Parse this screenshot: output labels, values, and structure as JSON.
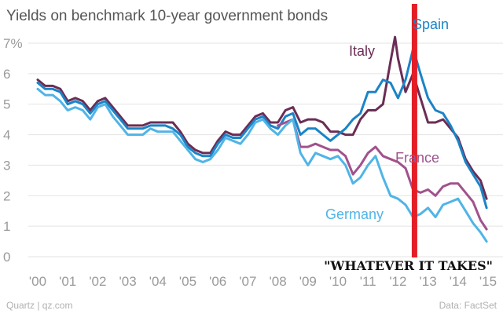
{
  "chart_data": {
    "type": "line",
    "title": "Yields on benchmark 10-year government bonds",
    "xlabel": "",
    "ylabel": "",
    "x_range": [
      2000,
      2015
    ],
    "ylim": [
      0,
      7
    ],
    "y_ticks": [
      0,
      1,
      2,
      3,
      4,
      5,
      6,
      7
    ],
    "y_tick_labels": [
      "0",
      "1",
      "2",
      "3",
      "4",
      "5",
      "6",
      "7%"
    ],
    "x_ticks": [
      2000,
      2001,
      2002,
      2003,
      2004,
      2005,
      2006,
      2007,
      2008,
      2009,
      2010,
      2011,
      2012,
      2013,
      2014,
      2015
    ],
    "x_tick_labels": [
      "'00",
      "'01",
      "'02",
      "'03",
      "'04",
      "'05",
      "'06",
      "'07",
      "'08",
      "'09",
      "'10",
      "'11",
      "'12",
      "'13",
      "'14",
      "'15"
    ],
    "grid": true,
    "legend": "direct labels",
    "series": [
      {
        "name": "Italy",
        "color": "#6b2d55",
        "x": [
          2000.0,
          2000.25,
          2000.5,
          2000.75,
          2001.0,
          2001.25,
          2001.5,
          2001.75,
          2002.0,
          2002.25,
          2002.5,
          2002.75,
          2003.0,
          2003.25,
          2003.5,
          2003.75,
          2004.0,
          2004.25,
          2004.5,
          2004.75,
          2005.0,
          2005.25,
          2005.5,
          2005.75,
          2006.0,
          2006.25,
          2006.5,
          2006.75,
          2007.0,
          2007.25,
          2007.5,
          2007.75,
          2008.0,
          2008.25,
          2008.5,
          2008.75,
          2009.0,
          2009.25,
          2009.5,
          2009.75,
          2010.0,
          2010.25,
          2010.5,
          2010.75,
          2011.0,
          2011.25,
          2011.5,
          2011.75,
          2011.9,
          2012.0,
          2012.25,
          2012.5,
          2012.75,
          2013.0,
          2013.25,
          2013.5,
          2013.75,
          2014.0,
          2014.25,
          2014.5,
          2014.75,
          2014.95
        ],
        "values": [
          5.8,
          5.6,
          5.6,
          5.5,
          5.1,
          5.2,
          5.1,
          4.8,
          5.1,
          5.2,
          4.9,
          4.6,
          4.3,
          4.3,
          4.3,
          4.4,
          4.4,
          4.4,
          4.4,
          4.1,
          3.7,
          3.5,
          3.4,
          3.4,
          3.8,
          4.1,
          4.0,
          4.0,
          4.3,
          4.6,
          4.7,
          4.4,
          4.4,
          4.8,
          4.9,
          4.4,
          4.5,
          4.5,
          4.4,
          4.1,
          4.1,
          4.0,
          4.0,
          4.5,
          4.8,
          4.8,
          5.0,
          6.4,
          7.2,
          6.5,
          5.4,
          6.0,
          5.2,
          4.4,
          4.4,
          4.5,
          4.2,
          3.9,
          3.2,
          2.8,
          2.5,
          1.9
        ]
      },
      {
        "name": "Spain",
        "color": "#1a84c7",
        "x": [
          2000.0,
          2000.25,
          2000.5,
          2000.75,
          2001.0,
          2001.25,
          2001.5,
          2001.75,
          2002.0,
          2002.25,
          2002.5,
          2002.75,
          2003.0,
          2003.25,
          2003.5,
          2003.75,
          2004.0,
          2004.25,
          2004.5,
          2004.75,
          2005.0,
          2005.25,
          2005.5,
          2005.75,
          2006.0,
          2006.25,
          2006.5,
          2006.75,
          2007.0,
          2007.25,
          2007.5,
          2007.75,
          2008.0,
          2008.25,
          2008.5,
          2008.75,
          2009.0,
          2009.25,
          2009.5,
          2009.75,
          2010.0,
          2010.25,
          2010.5,
          2010.75,
          2011.0,
          2011.25,
          2011.5,
          2011.75,
          2012.0,
          2012.25,
          2012.5,
          2012.6,
          2012.75,
          2013.0,
          2013.25,
          2013.5,
          2013.75,
          2014.0,
          2014.25,
          2014.5,
          2014.75,
          2014.95
        ],
        "values": [
          5.7,
          5.5,
          5.5,
          5.4,
          5.0,
          5.1,
          5.0,
          4.7,
          5.0,
          5.1,
          4.8,
          4.5,
          4.2,
          4.2,
          4.2,
          4.3,
          4.3,
          4.3,
          4.2,
          4.0,
          3.6,
          3.4,
          3.3,
          3.3,
          3.7,
          4.0,
          3.9,
          3.9,
          4.2,
          4.5,
          4.6,
          4.3,
          4.2,
          4.6,
          4.7,
          4.0,
          4.2,
          4.2,
          4.0,
          3.8,
          4.0,
          4.2,
          4.5,
          4.7,
          5.4,
          5.4,
          5.8,
          5.7,
          5.2,
          5.8,
          6.8,
          6.5,
          6.0,
          5.2,
          4.8,
          4.7,
          4.3,
          3.8,
          3.1,
          2.7,
          2.3,
          1.6
        ]
      },
      {
        "name": "France",
        "color": "#a0528c",
        "x": [
          2008.0,
          2008.25,
          2008.5,
          2008.75,
          2009.0,
          2009.25,
          2009.5,
          2009.75,
          2010.0,
          2010.25,
          2010.5,
          2010.75,
          2011.0,
          2011.25,
          2011.5,
          2011.75,
          2012.0,
          2012.25,
          2012.5,
          2012.75,
          2013.0,
          2013.25,
          2013.5,
          2013.75,
          2014.0,
          2014.25,
          2014.5,
          2014.75,
          2014.95
        ],
        "values": [
          4.3,
          4.4,
          4.5,
          3.6,
          3.6,
          3.7,
          3.6,
          3.5,
          3.5,
          3.3,
          2.7,
          3.0,
          3.4,
          3.6,
          3.3,
          3.2,
          3.1,
          2.9,
          2.2,
          2.1,
          2.2,
          2.0,
          2.3,
          2.4,
          2.4,
          2.1,
          1.8,
          1.2,
          0.9
        ]
      },
      {
        "name": "Germany",
        "color": "#50b4e6",
        "x": [
          2000.0,
          2000.25,
          2000.5,
          2000.75,
          2001.0,
          2001.25,
          2001.5,
          2001.75,
          2002.0,
          2002.25,
          2002.5,
          2002.75,
          2003.0,
          2003.25,
          2003.5,
          2003.75,
          2004.0,
          2004.25,
          2004.5,
          2004.75,
          2005.0,
          2005.25,
          2005.5,
          2005.75,
          2006.0,
          2006.25,
          2006.5,
          2006.75,
          2007.0,
          2007.25,
          2007.5,
          2007.75,
          2008.0,
          2008.25,
          2008.5,
          2008.75,
          2009.0,
          2009.25,
          2009.5,
          2009.75,
          2010.0,
          2010.25,
          2010.5,
          2010.75,
          2011.0,
          2011.25,
          2011.5,
          2011.75,
          2012.0,
          2012.25,
          2012.5,
          2012.75,
          2013.0,
          2013.25,
          2013.5,
          2013.75,
          2014.0,
          2014.25,
          2014.5,
          2014.75,
          2014.95
        ],
        "values": [
          5.5,
          5.3,
          5.3,
          5.1,
          4.8,
          4.9,
          4.8,
          4.5,
          4.9,
          5.0,
          4.6,
          4.3,
          4.0,
          4.0,
          4.0,
          4.2,
          4.1,
          4.1,
          4.1,
          3.8,
          3.5,
          3.2,
          3.1,
          3.2,
          3.5,
          3.9,
          3.8,
          3.7,
          4.0,
          4.4,
          4.5,
          4.2,
          4.0,
          4.3,
          4.5,
          3.4,
          3.0,
          3.4,
          3.3,
          3.2,
          3.3,
          3.0,
          2.4,
          2.6,
          3.0,
          3.3,
          2.6,
          2.0,
          1.9,
          1.7,
          1.3,
          1.4,
          1.6,
          1.3,
          1.7,
          1.8,
          1.9,
          1.5,
          1.1,
          0.8,
          0.5
        ]
      }
    ],
    "annotation": {
      "text": "\"WHATEVER IT TAKES\"",
      "x": 2012.55,
      "line_color": "#e41e26"
    }
  },
  "footer": {
    "source_left": "Quartz | qz.com",
    "source_right": "Data: FactSet"
  }
}
